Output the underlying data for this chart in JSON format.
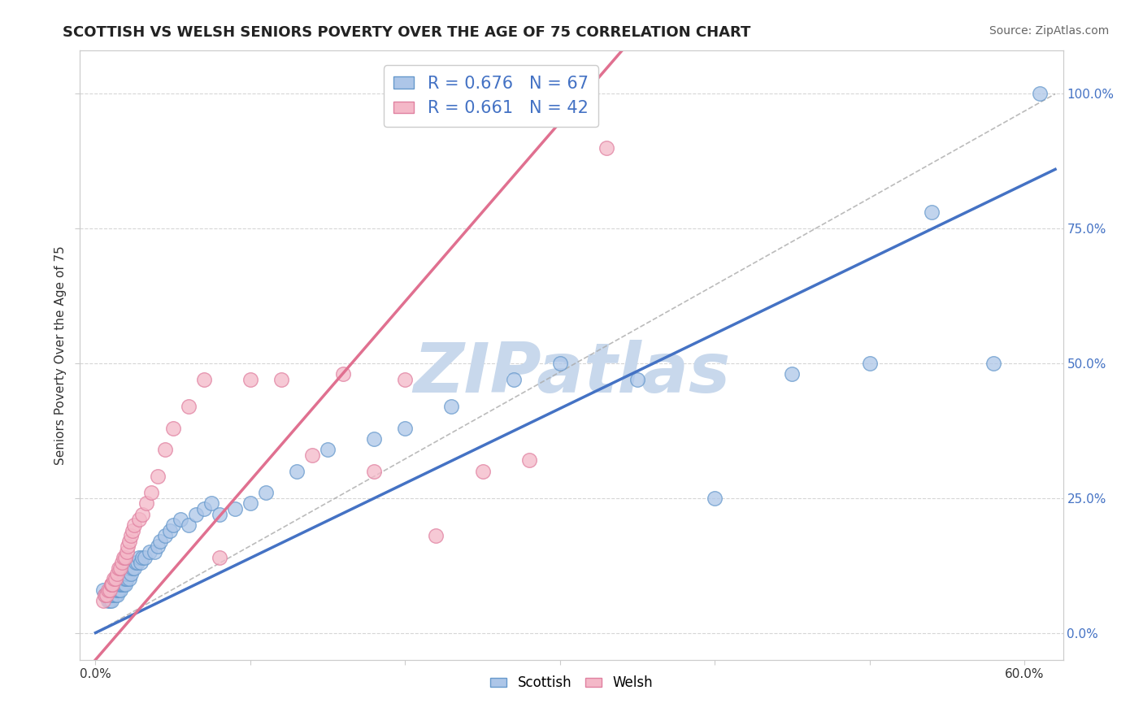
{
  "title": "SCOTTISH VS WELSH SENIORS POVERTY OVER THE AGE OF 75 CORRELATION CHART",
  "source": "Source: ZipAtlas.com",
  "ylabel": "Seniors Poverty Over the Age of 75",
  "x_ticks": [
    0.0,
    0.1,
    0.2,
    0.3,
    0.4,
    0.5,
    0.6
  ],
  "x_tick_labels": [
    "0.0%",
    "",
    "",
    "",
    "",
    "",
    "60.0%"
  ],
  "y_ticks": [
    0.0,
    0.25,
    0.5,
    0.75,
    1.0
  ],
  "y_tick_labels_right": [
    "0.0%",
    "25.0%",
    "50.0%",
    "75.0%",
    "100.0%"
  ],
  "xlim": [
    -0.01,
    0.625
  ],
  "ylim": [
    -0.05,
    1.08
  ],
  "scottish_R": 0.676,
  "scottish_N": 67,
  "welsh_R": 0.661,
  "welsh_N": 42,
  "scottish_color": "#adc6e8",
  "scottish_edge": "#6699cc",
  "scottish_line_color": "#4472c4",
  "welsh_color": "#f4b8c8",
  "welsh_edge": "#e080a0",
  "welsh_line_color": "#e07090",
  "scottish_x": [
    0.005,
    0.006,
    0.007,
    0.008,
    0.009,
    0.01,
    0.01,
    0.011,
    0.012,
    0.012,
    0.013,
    0.013,
    0.014,
    0.014,
    0.015,
    0.015,
    0.016,
    0.016,
    0.017,
    0.018,
    0.018,
    0.019,
    0.019,
    0.02,
    0.02,
    0.021,
    0.022,
    0.022,
    0.023,
    0.024,
    0.025,
    0.026,
    0.027,
    0.028,
    0.029,
    0.03,
    0.032,
    0.035,
    0.038,
    0.04,
    0.042,
    0.045,
    0.048,
    0.05,
    0.055,
    0.06,
    0.065,
    0.07,
    0.075,
    0.08,
    0.09,
    0.1,
    0.11,
    0.13,
    0.15,
    0.18,
    0.2,
    0.23,
    0.27,
    0.3,
    0.35,
    0.4,
    0.45,
    0.5,
    0.54,
    0.58,
    0.61
  ],
  "scottish_y": [
    0.08,
    0.07,
    0.07,
    0.06,
    0.06,
    0.06,
    0.07,
    0.07,
    0.08,
    0.08,
    0.07,
    0.08,
    0.07,
    0.08,
    0.08,
    0.09,
    0.08,
    0.09,
    0.09,
    0.09,
    0.1,
    0.09,
    0.1,
    0.1,
    0.11,
    0.11,
    0.1,
    0.12,
    0.11,
    0.12,
    0.12,
    0.13,
    0.13,
    0.14,
    0.13,
    0.14,
    0.14,
    0.15,
    0.15,
    0.16,
    0.17,
    0.18,
    0.19,
    0.2,
    0.21,
    0.2,
    0.22,
    0.23,
    0.24,
    0.22,
    0.23,
    0.24,
    0.26,
    0.3,
    0.34,
    0.36,
    0.38,
    0.42,
    0.47,
    0.5,
    0.47,
    0.25,
    0.48,
    0.5,
    0.78,
    0.5,
    1.0
  ],
  "welsh_x": [
    0.005,
    0.006,
    0.007,
    0.008,
    0.009,
    0.01,
    0.01,
    0.011,
    0.012,
    0.013,
    0.014,
    0.015,
    0.016,
    0.017,
    0.018,
    0.019,
    0.02,
    0.021,
    0.022,
    0.023,
    0.024,
    0.025,
    0.028,
    0.03,
    0.033,
    0.036,
    0.04,
    0.045,
    0.05,
    0.06,
    0.07,
    0.08,
    0.1,
    0.12,
    0.14,
    0.16,
    0.18,
    0.2,
    0.22,
    0.25,
    0.28,
    0.33
  ],
  "welsh_y": [
    0.06,
    0.07,
    0.07,
    0.08,
    0.08,
    0.09,
    0.09,
    0.09,
    0.1,
    0.1,
    0.11,
    0.12,
    0.12,
    0.13,
    0.14,
    0.14,
    0.15,
    0.16,
    0.17,
    0.18,
    0.19,
    0.2,
    0.21,
    0.22,
    0.24,
    0.26,
    0.29,
    0.34,
    0.38,
    0.42,
    0.47,
    0.14,
    0.47,
    0.47,
    0.33,
    0.48,
    0.3,
    0.47,
    0.18,
    0.3,
    0.32,
    0.9
  ],
  "scottish_line_x0": 0.0,
  "scottish_line_y0": 0.0,
  "scottish_line_x1": 0.62,
  "scottish_line_y1": 0.86,
  "welsh_line_x0": 0.0,
  "welsh_line_y0": -0.05,
  "welsh_line_x1": 0.34,
  "welsh_line_y1": 1.08,
  "diag_line_x0": 0.0,
  "diag_line_y0": 0.0,
  "diag_line_x1": 0.62,
  "diag_line_y1": 1.0,
  "background_color": "#ffffff",
  "grid_color": "#cccccc",
  "title_fontsize": 13,
  "axis_label_fontsize": 11,
  "tick_fontsize": 11,
  "legend_fontsize": 15,
  "source_fontsize": 10,
  "watermark_text": "ZIPatlas",
  "watermark_color": "#c8d8ec",
  "watermark_fontsize": 62
}
